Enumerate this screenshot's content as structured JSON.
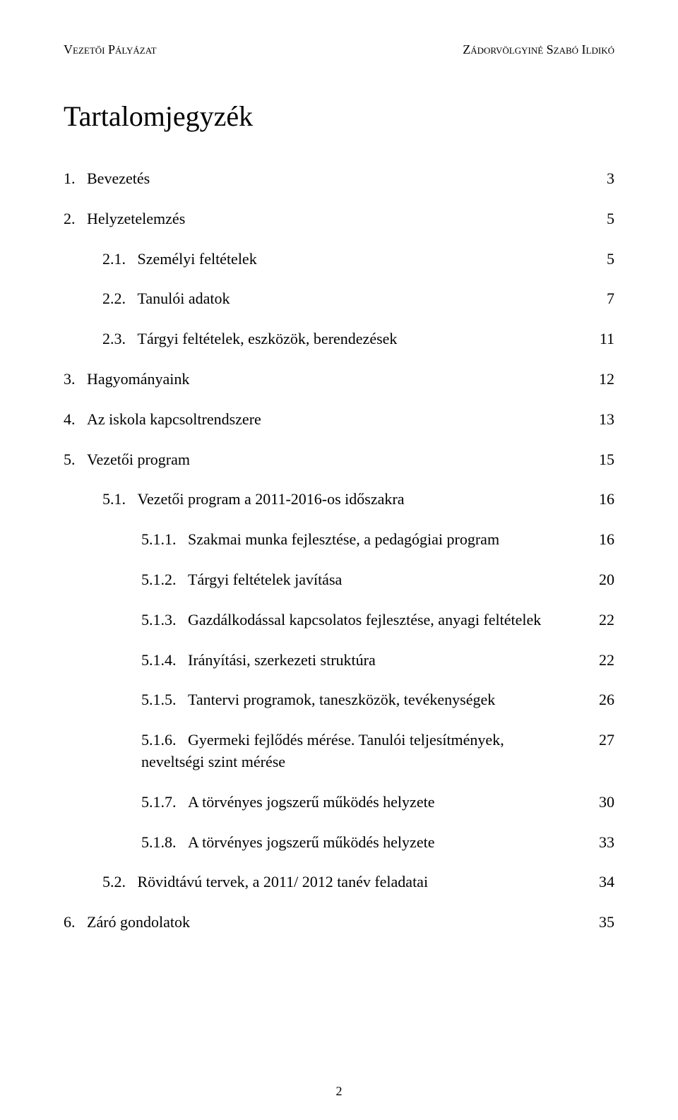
{
  "header": {
    "left": "Vezetői Pályázat",
    "right": "Zádorvölgyiné Szabó Ildikó"
  },
  "title": "Tartalomjegyzék",
  "toc": [
    {
      "num": "1.",
      "text": "Bevezetés",
      "page": "3",
      "indent": 0
    },
    {
      "num": "2.",
      "text": "Helyzetelemzés",
      "page": "5",
      "indent": 0
    },
    {
      "num": "2.1.",
      "text": "Személyi feltételek",
      "page": "5",
      "indent": 1
    },
    {
      "num": "2.2.",
      "text": "Tanulói adatok",
      "page": "7",
      "indent": 1
    },
    {
      "num": "2.3.",
      "text": "Tárgyi feltételek, eszközök, berendezések",
      "page": "11",
      "indent": 1
    },
    {
      "num": "3.",
      "text": "Hagyományaink",
      "page": "12",
      "indent": 0
    },
    {
      "num": "4.",
      "text": "Az iskola kapcsoltrendszere",
      "page": "13",
      "indent": 0
    },
    {
      "num": "5.",
      "text": "Vezetői program",
      "page": "15",
      "indent": 0
    },
    {
      "num": "5.1.",
      "text": "Vezetői program a 2011-2016-os időszakra",
      "page": "16",
      "indent": 1
    },
    {
      "num": "5.1.1.",
      "text": "Szakmai munka fejlesztése, a pedagógiai program",
      "page": "16",
      "indent": 2
    },
    {
      "num": "5.1.2.",
      "text": "Tárgyi feltételek javítása",
      "page": "20",
      "indent": 2
    },
    {
      "num": "5.1.3.",
      "text": "Gazdálkodással kapcsolatos fejlesztése, anyagi feltételek",
      "page": "22",
      "indent": 2
    },
    {
      "num": "5.1.4.",
      "text": "Irányítási, szerkezeti struktúra",
      "page": "22",
      "indent": 2
    },
    {
      "num": "5.1.5.",
      "text": "Tantervi programok, taneszközök, tevékenységek",
      "page": "26",
      "indent": 2
    },
    {
      "num": "5.1.6.",
      "text": "Gyermeki fejlődés mérése. Tanulói teljesítmények,",
      "page": "27",
      "indent": 2,
      "cont": "neveltségi szint mérése"
    },
    {
      "num": "5.1.7.",
      "text": "A törvényes jogszerű működés helyzete",
      "page": "30",
      "indent": 2
    },
    {
      "num": "5.1.8.",
      "text": "A törvényes jogszerű működés helyzete",
      "page": "33",
      "indent": 2
    },
    {
      "num": "5.2.",
      "text": "Rövidtávú tervek, a 2011/ 2012 tanév feladatai",
      "page": "34",
      "indent": 1
    },
    {
      "num": "6.",
      "text": "Záró gondolatok",
      "page": "35",
      "indent": 0
    }
  ],
  "footer": {
    "pageNumber": "2"
  }
}
